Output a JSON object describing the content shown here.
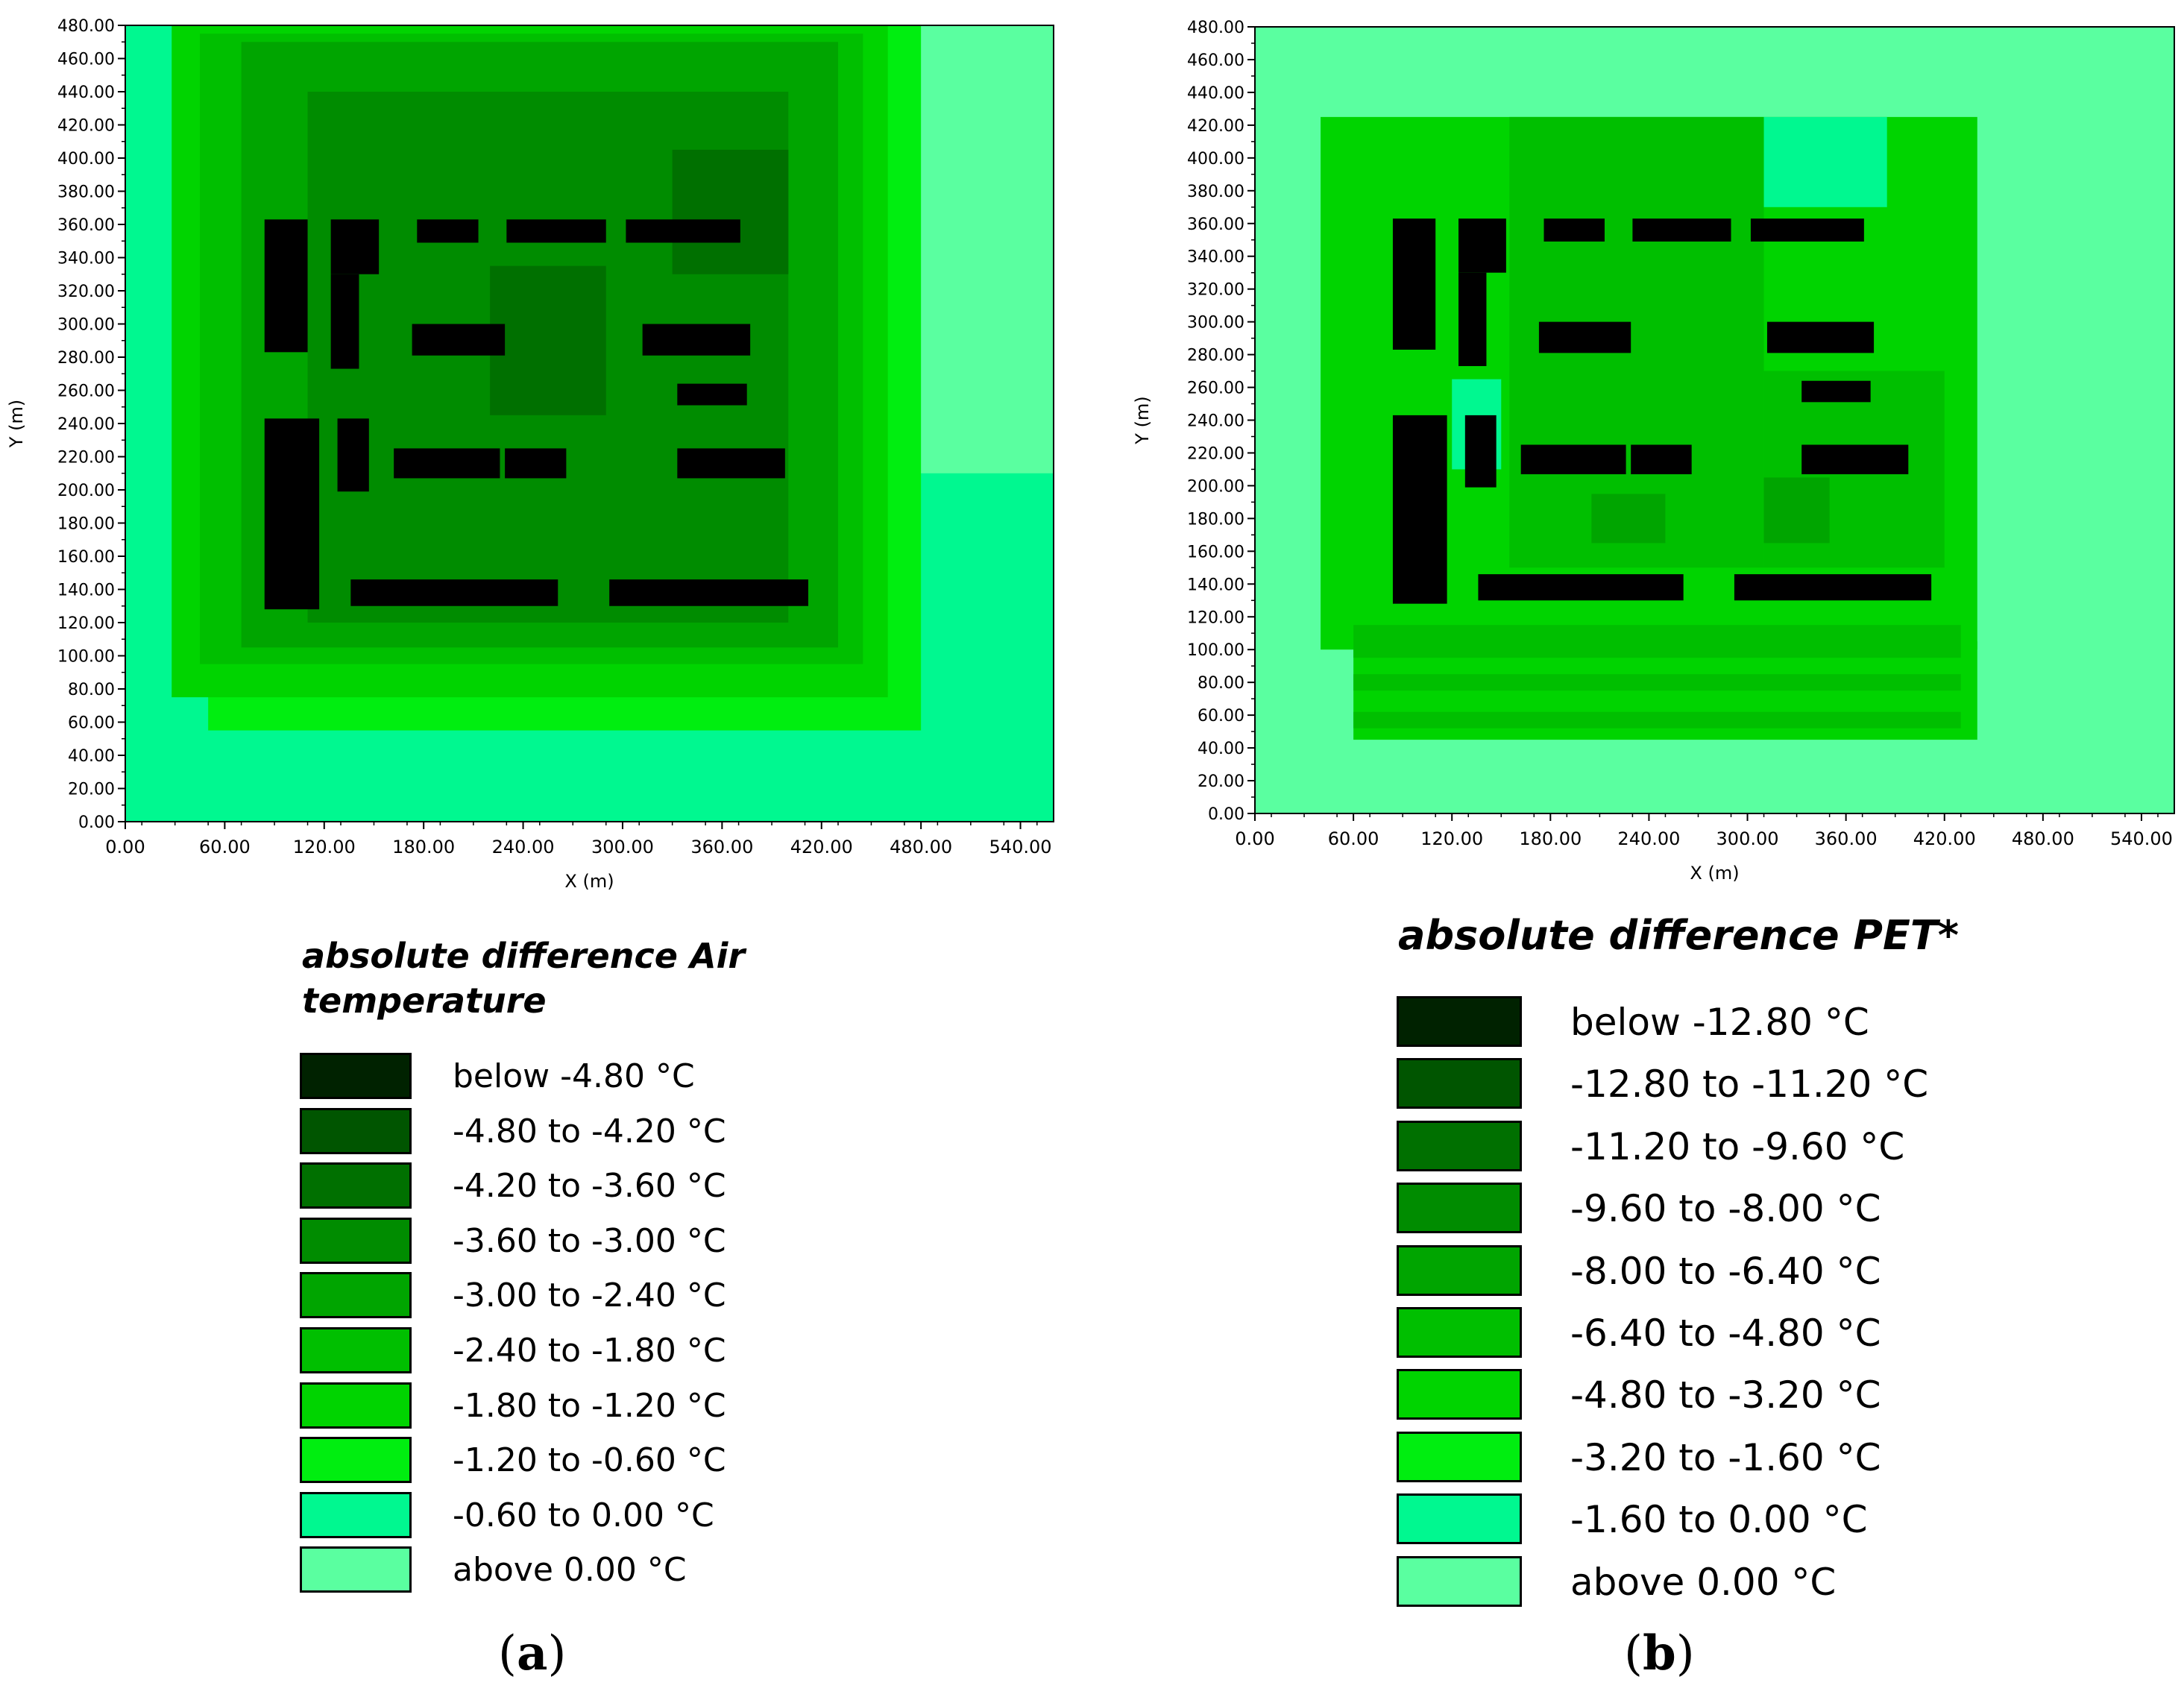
{
  "chart_data": [
    {
      "type": "heatmap",
      "panel_label": "a",
      "xlabel": "X (m)",
      "ylabel": "Y (m)",
      "xlim": [
        0,
        560
      ],
      "ylim": [
        0,
        480
      ],
      "x_ticks": [
        "0.00",
        "60.00",
        "120.00",
        "180.00",
        "240.00",
        "300.00",
        "360.00",
        "420.00",
        "480.00",
        "540.00"
      ],
      "y_ticks": [
        "0.00",
        "20.00",
        "40.00",
        "60.00",
        "80.00",
        "100.00",
        "120.00",
        "140.00",
        "160.00",
        "180.00",
        "200.00",
        "220.00",
        "240.00",
        "260.00",
        "280.00",
        "300.00",
        "320.00",
        "340.00",
        "360.00",
        "380.00",
        "400.00",
        "420.00",
        "440.00",
        "460.00",
        "480.00"
      ],
      "legend_title": "absolute difference Air temperature",
      "legend": [
        {
          "label": "below -4.80 °C",
          "color": "#002200"
        },
        {
          "label": "-4.80 to -4.20 °C",
          "color": "#005500"
        },
        {
          "label": "-4.20 to -3.60 °C",
          "color": "#007000"
        },
        {
          "label": "-3.60 to -3.00 °C",
          "color": "#008c00"
        },
        {
          "label": "-3.00 to -2.40 °C",
          "color": "#00a500"
        },
        {
          "label": "-2.40 to -1.80 °C",
          "color": "#00bf00"
        },
        {
          "label": "-1.80 to -1.20 °C",
          "color": "#00d400"
        },
        {
          "label": "-1.20 to -0.60 °C",
          "color": "#00ee10"
        },
        {
          "label": "-0.60 to 0.00 °C",
          "color": "#00f890"
        },
        {
          "label": "above 0.00 °C",
          "color": "#5affa0"
        }
      ],
      "field_zones": [
        {
          "level": "-0.60 to 0.00 °C",
          "x": [
            0,
            560
          ],
          "y": [
            0,
            480
          ]
        },
        {
          "level": "above 0.00 °C",
          "x": [
            458,
            560
          ],
          "y": [
            210,
            480
          ]
        },
        {
          "level": "-1.20 to -0.60 °C",
          "x": [
            50,
            480
          ],
          "y": [
            55,
            480
          ]
        },
        {
          "level": "-1.80 to -1.20 °C",
          "x": [
            28,
            460
          ],
          "y": [
            75,
            480
          ]
        },
        {
          "level": "-2.40 to -1.80 °C",
          "x": [
            45,
            445
          ],
          "y": [
            95,
            475
          ]
        },
        {
          "level": "-3.00 to -2.40 °C",
          "x": [
            70,
            430
          ],
          "y": [
            105,
            470
          ]
        },
        {
          "level": "-3.60 to -3.00 °C",
          "x": [
            110,
            400
          ],
          "y": [
            120,
            440
          ]
        },
        {
          "level": "-4.20 to -3.60 °C",
          "x": [
            220,
            290
          ],
          "y": [
            245,
            335
          ]
        },
        {
          "level": "-4.20 to -3.60 °C",
          "x": [
            330,
            400
          ],
          "y": [
            330,
            405
          ]
        }
      ],
      "buildings": [
        {
          "x": [
            84,
            110
          ],
          "y": [
            283,
            363
          ]
        },
        {
          "x": [
            124,
            153
          ],
          "y": [
            330,
            363
          ]
        },
        {
          "x": [
            124,
            141
          ],
          "y": [
            273,
            330
          ]
        },
        {
          "x": [
            176,
            213
          ],
          "y": [
            349,
            363
          ]
        },
        {
          "x": [
            230,
            290
          ],
          "y": [
            349,
            363
          ]
        },
        {
          "x": [
            302,
            371
          ],
          "y": [
            349,
            363
          ]
        },
        {
          "x": [
            173,
            229
          ],
          "y": [
            281,
            300
          ]
        },
        {
          "x": [
            312,
            377
          ],
          "y": [
            281,
            300
          ]
        },
        {
          "x": [
            333,
            375
          ],
          "y": [
            251,
            264
          ]
        },
        {
          "x": [
            84,
            117
          ],
          "y": [
            128,
            243
          ]
        },
        {
          "x": [
            128,
            147
          ],
          "y": [
            199,
            243
          ]
        },
        {
          "x": [
            162,
            226
          ],
          "y": [
            207,
            225
          ]
        },
        {
          "x": [
            229,
            266
          ],
          "y": [
            207,
            225
          ]
        },
        {
          "x": [
            333,
            398
          ],
          "y": [
            207,
            225
          ]
        },
        {
          "x": [
            136,
            261
          ],
          "y": [
            130,
            146
          ]
        },
        {
          "x": [
            292,
            412
          ],
          "y": [
            130,
            146
          ]
        }
      ]
    },
    {
      "type": "heatmap",
      "panel_label": "b",
      "xlabel": "X (m)",
      "ylabel": "Y (m)",
      "xlim": [
        0,
        560
      ],
      "ylim": [
        0,
        480
      ],
      "x_ticks": [
        "0.00",
        "60.00",
        "120.00",
        "180.00",
        "240.00",
        "300.00",
        "360.00",
        "420.00",
        "480.00",
        "540.00"
      ],
      "y_ticks": [
        "0.00",
        "20.00",
        "40.00",
        "60.00",
        "80.00",
        "100.00",
        "120.00",
        "140.00",
        "160.00",
        "180.00",
        "200.00",
        "220.00",
        "240.00",
        "260.00",
        "280.00",
        "300.00",
        "320.00",
        "340.00",
        "360.00",
        "380.00",
        "400.00",
        "420.00",
        "440.00",
        "460.00",
        "480.00"
      ],
      "legend_title": "absolute difference PET*",
      "legend": [
        {
          "label": "below -12.80 °C",
          "color": "#002200"
        },
        {
          "label": "-12.80 to -11.20 °C",
          "color": "#005500"
        },
        {
          "label": "-11.20 to -9.60 °C",
          "color": "#007000"
        },
        {
          "label": "-9.60 to -8.00 °C",
          "color": "#008c00"
        },
        {
          "label": "-8.00 to -6.40 °C",
          "color": "#00a500"
        },
        {
          "label": "-6.40 to -4.80 °C",
          "color": "#00bf00"
        },
        {
          "label": "-4.80 to -3.20 °C",
          "color": "#00d400"
        },
        {
          "label": "-3.20 to -1.60 °C",
          "color": "#00ee10"
        },
        {
          "label": "-1.60 to 0.00 °C",
          "color": "#00f890"
        },
        {
          "label": "above 0.00 °C",
          "color": "#5affa0"
        }
      ],
      "field_zones": [
        {
          "level": "above 0.00 °C",
          "x": [
            0,
            560
          ],
          "y": [
            0,
            480
          ]
        },
        {
          "level": "-4.80 to -3.20 °C",
          "x": [
            40,
            440
          ],
          "y": [
            100,
            425
          ]
        },
        {
          "level": "-4.80 to -3.20 °C",
          "x": [
            60,
            440
          ],
          "y": [
            45,
            105
          ]
        },
        {
          "level": "-6.40 to -4.80 °C",
          "x": [
            155,
            310
          ],
          "y": [
            150,
            425
          ]
        },
        {
          "level": "-6.40 to -4.80 °C",
          "x": [
            310,
            420
          ],
          "y": [
            150,
            270
          ]
        },
        {
          "level": "-6.40 to -4.80 °C",
          "x": [
            60,
            430
          ],
          "y": [
            95,
            115
          ]
        },
        {
          "level": "-6.40 to -4.80 °C",
          "x": [
            60,
            430
          ],
          "y": [
            75,
            85
          ]
        },
        {
          "level": "-6.40 to -4.80 °C",
          "x": [
            60,
            430
          ],
          "y": [
            52,
            62
          ]
        },
        {
          "level": "-1.60 to 0.00 °C",
          "x": [
            120,
            150
          ],
          "y": [
            210,
            265
          ]
        },
        {
          "level": "-1.60 to 0.00 °C",
          "x": [
            310,
            385
          ],
          "y": [
            370,
            425
          ]
        },
        {
          "level": "-8.00 to -6.40 °C",
          "x": [
            205,
            250
          ],
          "y": [
            165,
            195
          ]
        },
        {
          "level": "-8.00 to -6.40 °C",
          "x": [
            310,
            350
          ],
          "y": [
            165,
            205
          ]
        }
      ],
      "buildings": [
        {
          "x": [
            84,
            110
          ],
          "y": [
            283,
            363
          ]
        },
        {
          "x": [
            124,
            153
          ],
          "y": [
            330,
            363
          ]
        },
        {
          "x": [
            124,
            141
          ],
          "y": [
            273,
            330
          ]
        },
        {
          "x": [
            176,
            213
          ],
          "y": [
            349,
            363
          ]
        },
        {
          "x": [
            230,
            290
          ],
          "y": [
            349,
            363
          ]
        },
        {
          "x": [
            302,
            371
          ],
          "y": [
            349,
            363
          ]
        },
        {
          "x": [
            173,
            229
          ],
          "y": [
            281,
            300
          ]
        },
        {
          "x": [
            312,
            377
          ],
          "y": [
            281,
            300
          ]
        },
        {
          "x": [
            333,
            375
          ],
          "y": [
            251,
            264
          ]
        },
        {
          "x": [
            84,
            117
          ],
          "y": [
            128,
            243
          ]
        },
        {
          "x": [
            128,
            147
          ],
          "y": [
            199,
            243
          ]
        },
        {
          "x": [
            162,
            226
          ],
          "y": [
            207,
            225
          ]
        },
        {
          "x": [
            229,
            266
          ],
          "y": [
            207,
            225
          ]
        },
        {
          "x": [
            333,
            398
          ],
          "y": [
            207,
            225
          ]
        },
        {
          "x": [
            136,
            261
          ],
          "y": [
            130,
            146
          ]
        },
        {
          "x": [
            292,
            412
          ],
          "y": [
            130,
            146
          ]
        }
      ]
    }
  ]
}
